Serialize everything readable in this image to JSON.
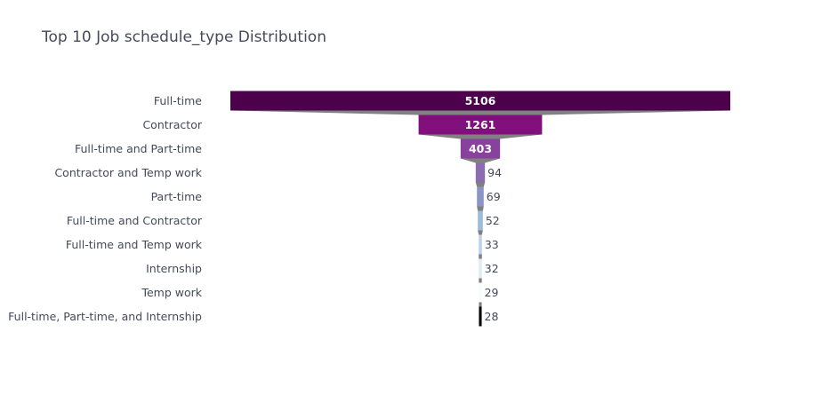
{
  "chart_data": {
    "type": "funnel",
    "title": "Top 10 Job schedule_type Distribution",
    "xlabel": "",
    "ylabel": "",
    "categories": [
      "Full-time",
      "Contractor",
      "Full-time and Part-time",
      "Contractor and Temp work",
      "Part-time",
      "Full-time and Contractor",
      "Full-time and Temp work",
      "Internship",
      "Temp work",
      "Full-time, Part-time, and Internship"
    ],
    "values": [
      5106,
      1261,
      403,
      94,
      69,
      52,
      33,
      32,
      29,
      28
    ],
    "colors": [
      "#4d004b",
      "#810f7c",
      "#88419d",
      "#8c6bb1",
      "#8c96c6",
      "#9ebcda",
      "#bfd3e6",
      "#e0ecf4",
      "#f7fcfd",
      "#000000"
    ],
    "connector_color": "#808080",
    "grid": false,
    "legend": "none"
  }
}
